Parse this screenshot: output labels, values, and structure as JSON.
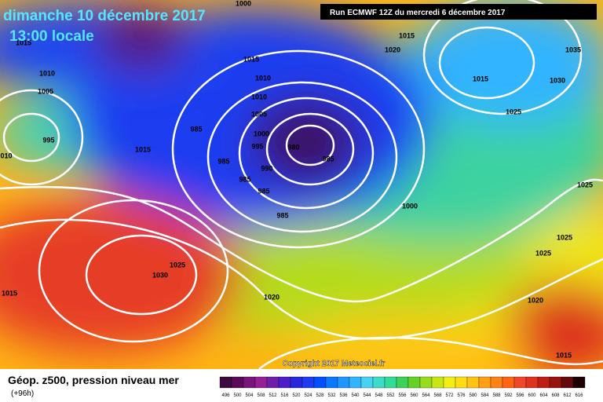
{
  "header": {
    "date": "dimanche 10 décembre 2017",
    "time": "13:00 locale",
    "run": "Run ECMWF 12Z du mercredi 6 décembre 2017"
  },
  "copyright": "Copyright 2017 Meteociel.fr",
  "legend": {
    "title": "Géop. z500, pression niveau mer",
    "lead": "(+96h)",
    "scale": [
      496,
      500,
      504,
      508,
      512,
      516,
      520,
      524,
      528,
      532,
      536,
      540,
      544,
      548,
      552,
      556,
      560,
      564,
      568,
      572,
      576,
      580,
      584,
      588,
      592,
      596,
      600,
      604,
      608,
      612,
      616
    ],
    "colors": [
      "#3c0a3c",
      "#5a0a5a",
      "#78147a",
      "#961e96",
      "#6e1eaa",
      "#4b1ec8",
      "#2828dc",
      "#1e3cf0",
      "#0050ff",
      "#0a78ff",
      "#1e96ff",
      "#32b4ff",
      "#46d2f0",
      "#3cdcc8",
      "#32dc96",
      "#3cd25a",
      "#64d228",
      "#96dc1e",
      "#c8e614",
      "#f0f014",
      "#ffdc14",
      "#ffc314",
      "#ffa014",
      "#ff8214",
      "#ff6414",
      "#f04628",
      "#dc321e",
      "#be1e14",
      "#961410",
      "#640a0a",
      "#1e0000"
    ]
  },
  "isobars": [
    1000,
    1015,
    1015,
    1020,
    1035,
    1015,
    1010,
    1010,
    1015,
    1030,
    1005,
    1010,
    1025,
    1005,
    985,
    1000,
    995,
    1015,
    995,
    980,
    985,
    "010",
    985,
    990,
    985,
    985,
    1025,
    1000,
    985,
    1025,
    1025,
    1025,
    1030,
    1015,
    1020,
    1020,
    1015
  ]
}
